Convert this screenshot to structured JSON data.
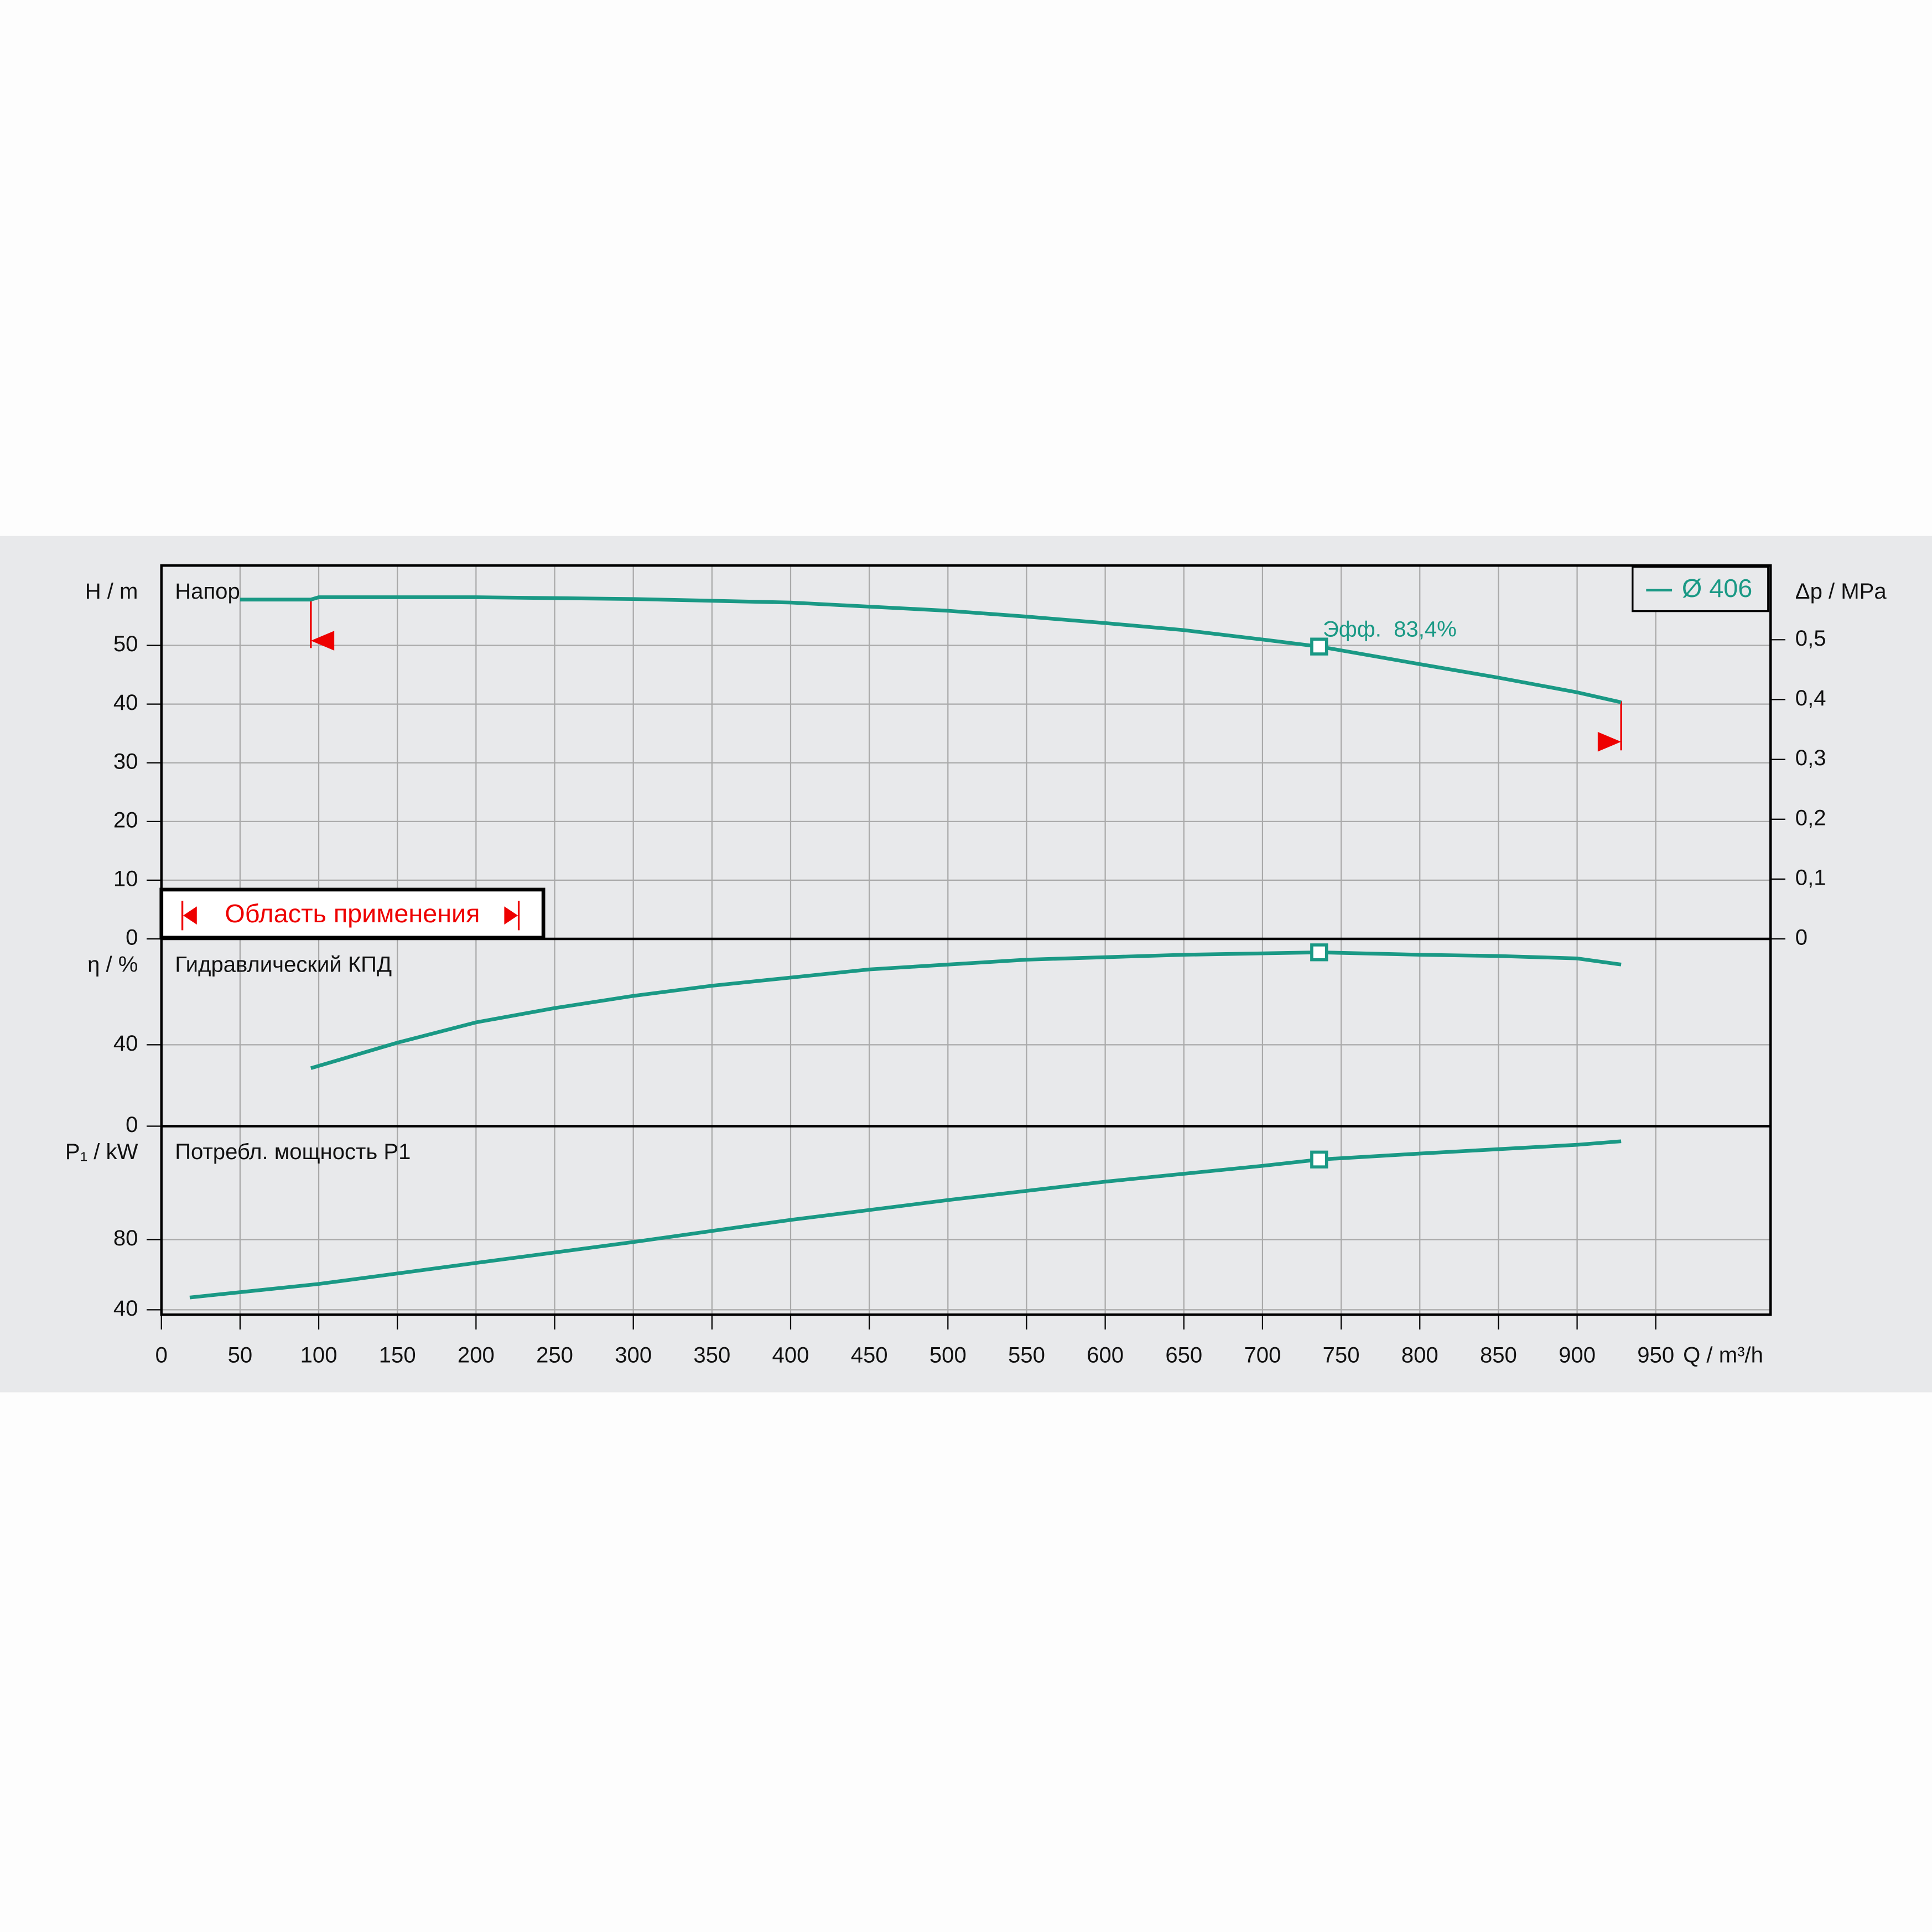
{
  "chart_data": [
    {
      "type": "line",
      "title": "Напор",
      "ylabel": "H / m",
      "y2label": "Δp / MPa",
      "xlim": [
        0,
        1023
      ],
      "ylim": [
        0,
        63.6
      ],
      "yticks": [
        0,
        10,
        20,
        30,
        40,
        50
      ],
      "y2lim": [
        0,
        0.624
      ],
      "y2ticks": [
        0,
        {
          "value": 0.1,
          "label": "0,1"
        },
        {
          "value": 0.2,
          "label": "0,2"
        },
        {
          "value": 0.3,
          "label": "0,3"
        },
        {
          "value": 0.4,
          "label": "0,4"
        },
        {
          "value": 0.5,
          "label": "0,5"
        }
      ],
      "grid": true,
      "legend": "upper right",
      "series": [
        {
          "name": "Ø 406",
          "color": "#1a9985",
          "x": [
            50,
            95,
            100,
            200,
            300,
            400,
            500,
            550,
            600,
            650,
            700,
            736,
            800,
            850,
            900,
            928
          ],
          "values": [
            57.8,
            57.8,
            58.2,
            58.2,
            57.9,
            57.3,
            55.9,
            54.9,
            53.8,
            52.6,
            51.0,
            49.8,
            46.8,
            44.5,
            42.0,
            40.3
          ]
        }
      ],
      "annotation": "Эфф.  83,4%",
      "duty_point": {
        "x": 736,
        "y": 49.8
      },
      "range_label": "Область применения",
      "range": [
        95,
        928
      ]
    },
    {
      "type": "line",
      "title": "Гидравлический КПД",
      "ylabel": "η / %",
      "xlim": [
        0,
        1023
      ],
      "ylim": [
        0,
        92
      ],
      "yticks": [
        0,
        40
      ],
      "grid": true,
      "series": [
        {
          "name": "Ø 406",
          "color": "#1a9985",
          "x": [
            95,
            150,
            200,
            250,
            300,
            350,
            400,
            450,
            500,
            550,
            600,
            650,
            736,
            800,
            850,
            900,
            928
          ],
          "values": [
            28.5,
            41,
            51,
            58,
            64,
            69,
            73,
            77,
            79.4,
            81.8,
            83,
            84.2,
            85.4,
            84.2,
            83.6,
            82.4,
            79.4
          ]
        }
      ],
      "duty_point": {
        "x": 736,
        "y": 85.4
      }
    },
    {
      "type": "line",
      "title": "Потребл. мощность P1",
      "ylabel": "P₁ / kW",
      "xlabel": "Q / m³/h",
      "xlim": [
        0,
        1023
      ],
      "ylim": [
        37.2,
        144.6
      ],
      "yticks": [
        40,
        80
      ],
      "xticks": [
        0,
        50,
        100,
        150,
        200,
        250,
        300,
        350,
        400,
        450,
        500,
        550,
        600,
        650,
        700,
        750,
        800,
        850,
        900,
        950
      ],
      "grid": true,
      "series": [
        {
          "name": "Ø 406",
          "color": "#1a9985",
          "x": [
            18,
            100,
            200,
            300,
            400,
            500,
            600,
            700,
            736,
            800,
            900,
            928
          ],
          "values": [
            47,
            54.7,
            66.7,
            78.6,
            91.2,
            102.5,
            113,
            122,
            125.6,
            129,
            134,
            136
          ]
        }
      ],
      "duty_point": {
        "x": 736,
        "y": 125.6
      }
    }
  ]
}
